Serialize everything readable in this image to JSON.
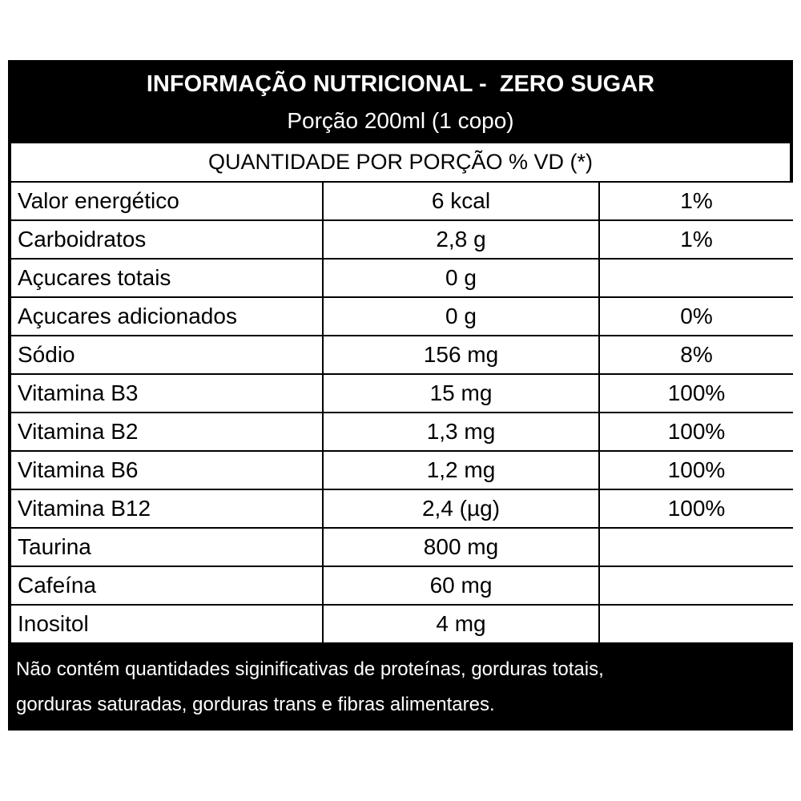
{
  "header": {
    "title": "INFORMAÇÃO NUTRICIONAL -  ZERO SUGAR",
    "subtitle": "Porção 200ml (1 copo)"
  },
  "table": {
    "heading": "QUANTIDADE POR PORÇÃO % VD (*)",
    "rows": [
      [
        "Valor energético",
        "6 kcal",
        "1%"
      ],
      [
        "Carboidratos",
        "2,8 g",
        "1%"
      ],
      [
        "Açucares totais",
        "0 g"
      ],
      [
        "Açucares adicionados",
        "0 g",
        "0%"
      ],
      [
        "Sódio",
        "156 mg",
        "8%"
      ],
      [
        "Vitamina B3",
        "15 mg",
        "100%"
      ],
      [
        "Vitamina B2",
        "1,3 mg",
        "100%"
      ],
      [
        "Vitamina B6",
        "1,2 mg",
        "100%"
      ],
      [
        "Vitamina B12",
        "2,4 (µg)",
        "100%"
      ],
      [
        "Taurina",
        "800 mg"
      ],
      [
        "Cafeína",
        "60 mg"
      ],
      [
        "Inositol",
        "4 mg"
      ]
    ]
  },
  "footer": {
    "lines": [
      "Não contém quantidades siginificativas de proteínas, gorduras totais,",
      "gorduras saturadas, gorduras trans e fibras alimentares."
    ]
  }
}
